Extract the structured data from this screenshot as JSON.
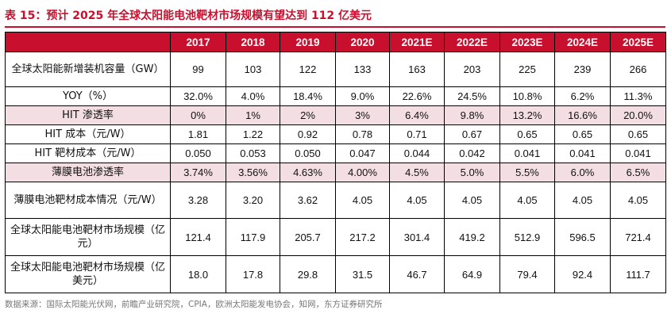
{
  "title": "表 15：预计 2025 年全球太阳能电池靶材市场规模有望达到 112 亿美元",
  "header": {
    "blank": "",
    "years": [
      "2017",
      "2018",
      "2019",
      "2020",
      "2021E",
      "2022E",
      "2023E",
      "2024E",
      "2025E"
    ]
  },
  "rows": [
    {
      "label": "全球太阳能新增装机容量（GW）",
      "values": [
        "99",
        "103",
        "122",
        "133",
        "163",
        "203",
        "225",
        "239",
        "266"
      ]
    },
    {
      "label": "YOY（%）",
      "values": [
        "32.0%",
        "4.0%",
        "18.4%",
        "9.0%",
        "22.6%",
        "24.5%",
        "10.8%",
        "6.2%",
        "11.3%"
      ]
    },
    {
      "label": "HIT 渗透率",
      "values": [
        "0%",
        "1%",
        "2%",
        "3%",
        "6.4%",
        "9.8%",
        "13.2%",
        "16.6%",
        "20.0%"
      ]
    },
    {
      "label": "HIT 成本（元/W）",
      "values": [
        "1.81",
        "1.22",
        "0.92",
        "0.78",
        "0.71",
        "0.67",
        "0.65",
        "0.65",
        "0.65"
      ]
    },
    {
      "label": "HIT 靶材成本（元/W）",
      "values": [
        "0.050",
        "0.053",
        "0.050",
        "0.047",
        "0.044",
        "0.042",
        "0.041",
        "0.041",
        "0.041"
      ]
    },
    {
      "label": "薄膜电池渗透率",
      "values": [
        "3.74%",
        "3.56%",
        "4.63%",
        "4.00%",
        "4.5%",
        "5.0%",
        "5.5%",
        "6.0%",
        "6.5%"
      ]
    },
    {
      "label": "薄膜电池靶材成本情况（元/W）",
      "values": [
        "3.28",
        "3.20",
        "3.62",
        "4.05",
        "4.05",
        "4.05",
        "4.05",
        "4.05",
        "4.05"
      ]
    },
    {
      "label": "全球太阳能电池靶材市场规模（亿元）",
      "values": [
        "121.4",
        "117.9",
        "205.7",
        "217.2",
        "301.4",
        "419.2",
        "512.9",
        "596.5",
        "721.4"
      ]
    },
    {
      "label": "全球太阳能电池靶材市场规模（亿美元）",
      "values": [
        "18.0",
        "17.8",
        "29.8",
        "31.5",
        "46.7",
        "64.9",
        "79.4",
        "92.4",
        "111.7"
      ]
    }
  ],
  "source": "数据来源：国际太阳能光伏网，前瞻产业研究院，CPIA，欧洲太阳能发电协会，知网，东方证券研究所"
}
